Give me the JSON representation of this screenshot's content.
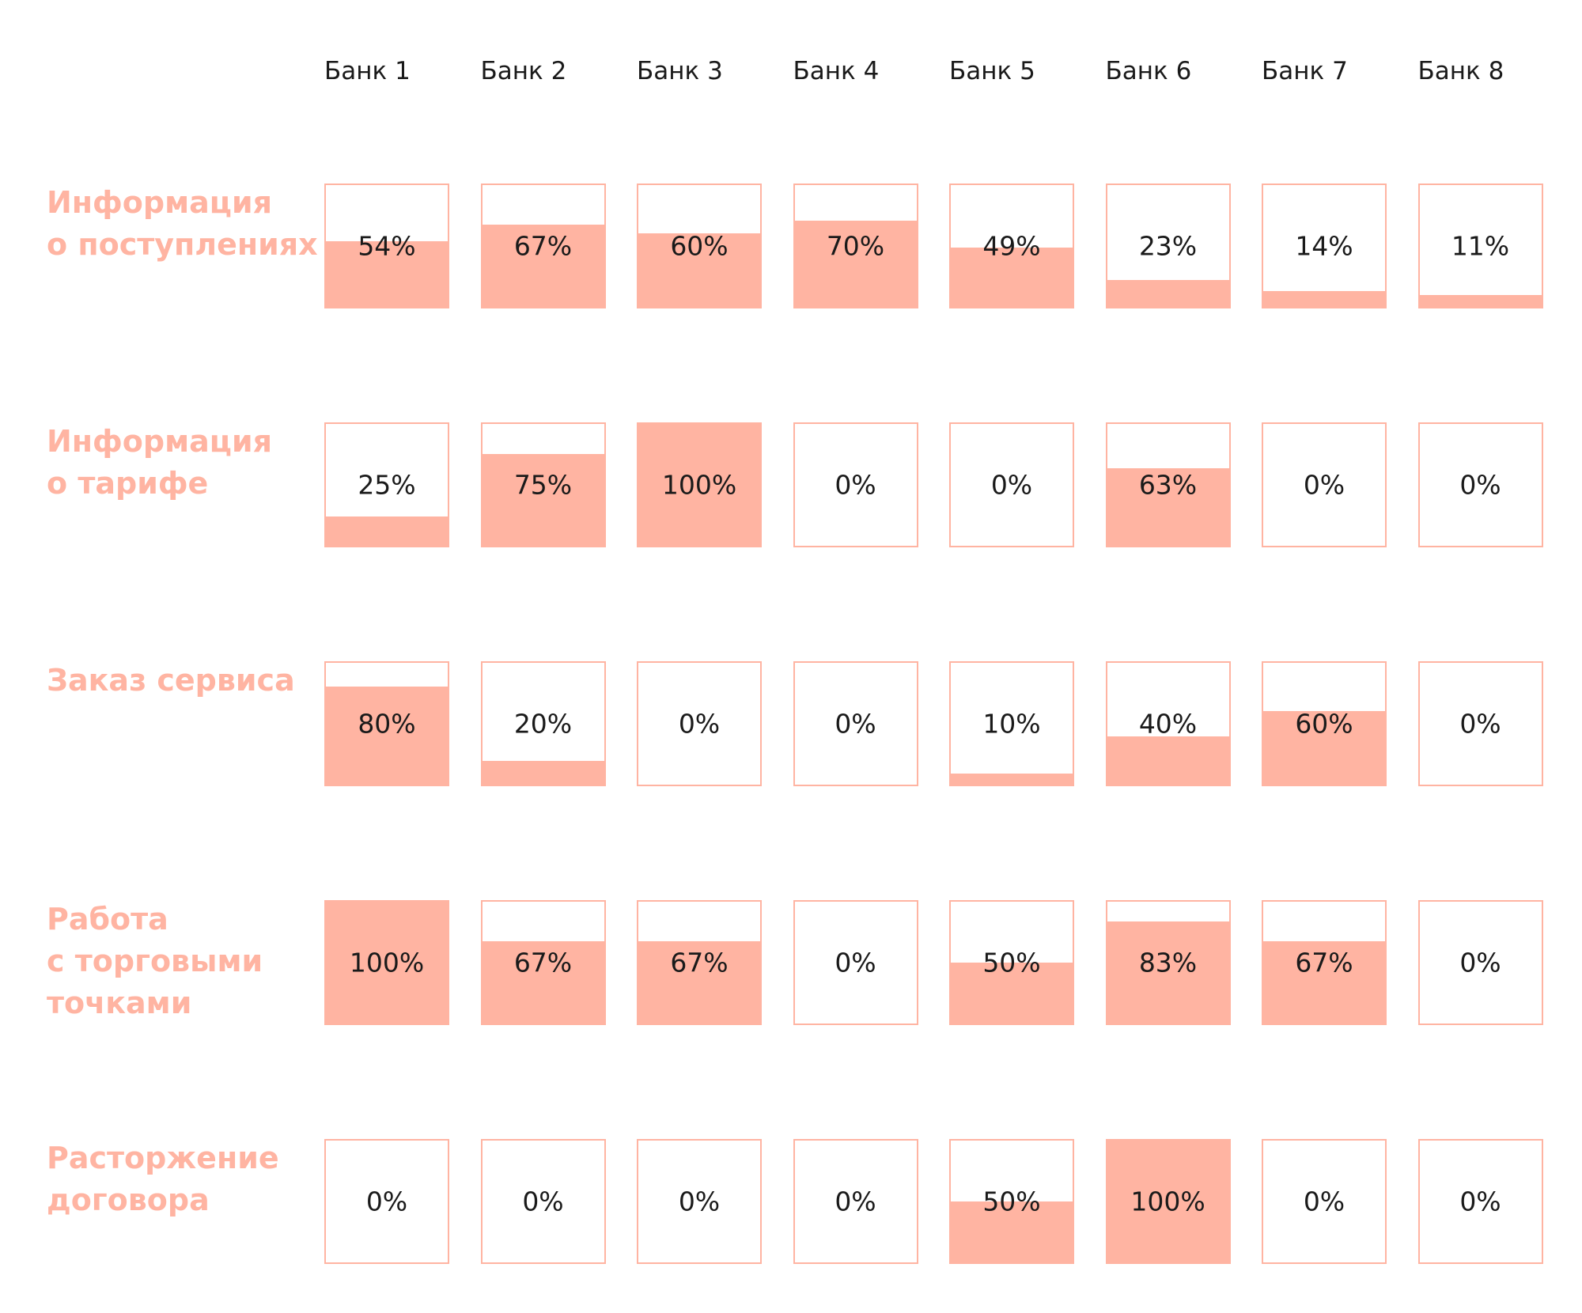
{
  "chart_data": {
    "type": "heatmap",
    "banks": [
      "Банк 1",
      "Банк 2",
      "Банк 3",
      "Банк 4",
      "Банк 5",
      "Банк 6",
      "Банк 7",
      "Банк 8"
    ],
    "rows": [
      {
        "label_lines": [
          "Информация",
          "о поступлениях"
        ],
        "values": [
          54,
          67,
          60,
          70,
          49,
          23,
          14,
          11
        ],
        "labels": [
          "54%",
          "67%",
          "60%",
          "70%",
          "49%",
          "23%",
          "14%",
          "11%"
        ]
      },
      {
        "label_lines": [
          "Информация",
          "о тарифе"
        ],
        "values": [
          25,
          75,
          100,
          0,
          0,
          63,
          0,
          0
        ],
        "labels": [
          "25%",
          "75%",
          "100%",
          "0%",
          "0%",
          "63%",
          "0%",
          "0%"
        ]
      },
      {
        "label_lines": [
          "Заказ сервиса"
        ],
        "values": [
          80,
          20,
          0,
          0,
          10,
          40,
          60,
          0
        ],
        "labels": [
          "80%",
          "20%",
          "0%",
          "0%",
          "10%",
          "40%",
          "60%",
          "0%"
        ]
      },
      {
        "label_lines": [
          "Работа",
          "с торговыми",
          "точками"
        ],
        "values": [
          100,
          67,
          67,
          0,
          50,
          83,
          67,
          0
        ],
        "labels": [
          "100%",
          "67%",
          "67%",
          "0%",
          "50%",
          "83%",
          "67%",
          "0%"
        ]
      },
      {
        "label_lines": [
          "Расторжение",
          "договора"
        ],
        "values": [
          0,
          0,
          0,
          0,
          50,
          100,
          0,
          0
        ],
        "labels": [
          "0%",
          "0%",
          "0%",
          "0%",
          "50%",
          "100%",
          "0%",
          "0%"
        ]
      }
    ],
    "value_range": [
      0,
      100
    ],
    "colors": {
      "accent": "#ffb4a2",
      "text": "#1a1a1a",
      "background": "#ffffff"
    }
  }
}
